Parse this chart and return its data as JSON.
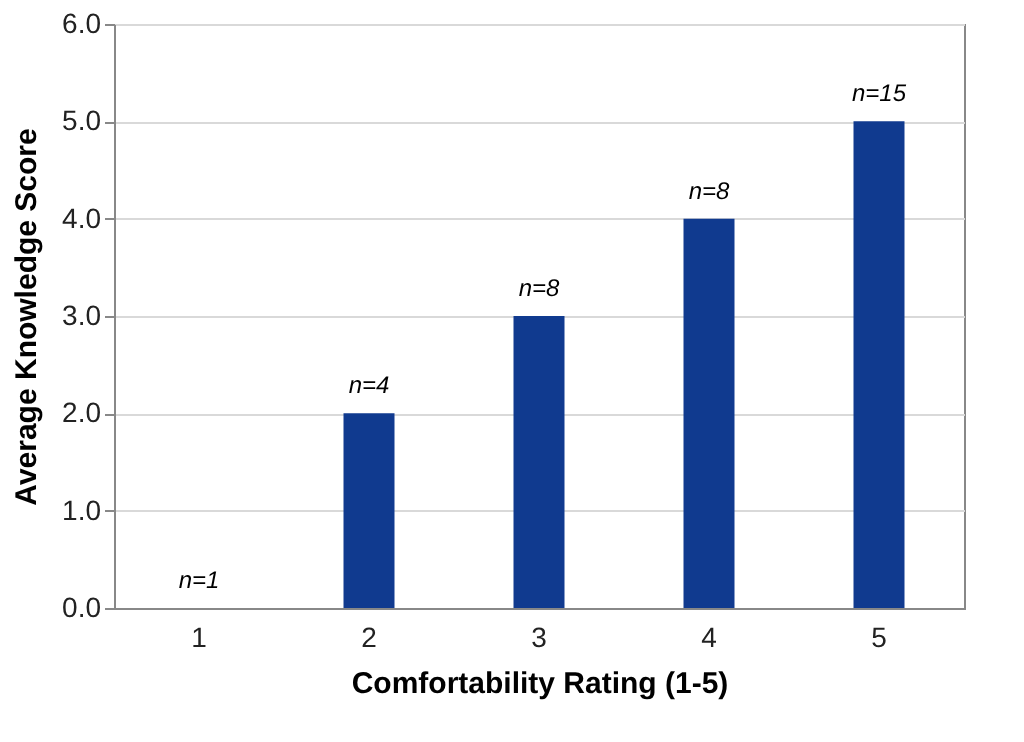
{
  "chart_data": {
    "type": "bar",
    "xlabel": "Comfortability Rating (1-5)",
    "ylabel": "Average Knowledge Score",
    "categories": [
      "1",
      "2",
      "3",
      "4",
      "5"
    ],
    "values": [
      0,
      2,
      3,
      4,
      5
    ],
    "color": "#103a8f",
    "ylim": [
      0,
      6
    ],
    "yticks": [
      {
        "value": 0,
        "label": "0.0"
      },
      {
        "value": 1,
        "label": "1.0"
      },
      {
        "value": 2,
        "label": "2.0"
      },
      {
        "value": 3,
        "label": "3.0"
      },
      {
        "value": 4,
        "label": "4.0"
      },
      {
        "value": 5,
        "label": "5.0"
      },
      {
        "value": 6,
        "label": "6.0"
      }
    ],
    "grid": "y",
    "annotations": [
      {
        "text": "n=1",
        "x": "1",
        "y": 0
      },
      {
        "text": "n=4",
        "x": "2",
        "y": 2
      },
      {
        "text": "n=8",
        "x": "3",
        "y": 3
      },
      {
        "text": "n=8",
        "x": "4",
        "y": 4
      },
      {
        "text": "n=15",
        "x": "5",
        "y": 5
      }
    ]
  }
}
